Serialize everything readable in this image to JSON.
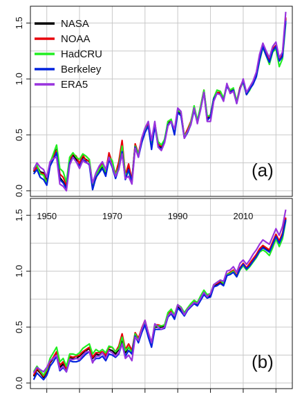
{
  "colors": {
    "NASA": "#000000",
    "NOAA": "#e8000b",
    "HadCRU": "#22ee22",
    "Berkeley": "#0022dd",
    "ERA5": "#9933dd"
  },
  "chart_data": [
    {
      "type": "line",
      "panel_label": "(a)",
      "legend_position": "top-left",
      "grid": true,
      "xlim": [
        1945,
        2025
      ],
      "ylim": [
        -0.05,
        1.65
      ],
      "yticks": [
        "0.0",
        "0.5",
        "1.0",
        "1.5"
      ],
      "x": [
        1946,
        1947,
        1948,
        1949,
        1950,
        1951,
        1952,
        1953,
        1954,
        1955,
        1956,
        1957,
        1958,
        1959,
        1960,
        1961,
        1962,
        1963,
        1964,
        1965,
        1966,
        1967,
        1968,
        1969,
        1970,
        1971,
        1972,
        1973,
        1974,
        1975,
        1976,
        1977,
        1978,
        1979,
        1980,
        1981,
        1982,
        1983,
        1984,
        1985,
        1986,
        1987,
        1988,
        1989,
        1990,
        1991,
        1992,
        1993,
        1994,
        1995,
        1996,
        1997,
        1998,
        1999,
        2000,
        2001,
        2002,
        2003,
        2004,
        2005,
        2006,
        2007,
        2008,
        2009,
        2010,
        2011,
        2012,
        2013,
        2014,
        2015,
        2016,
        2017,
        2018,
        2019,
        2020,
        2021,
        2022,
        2023
      ],
      "series": [
        {
          "name": "NASA",
          "values": [
            0.17,
            0.22,
            0.17,
            0.16,
            0.09,
            0.24,
            0.31,
            0.37,
            0.12,
            0.08,
            0.03,
            0.27,
            0.32,
            0.28,
            0.25,
            0.3,
            0.28,
            0.26,
            0.04,
            0.13,
            0.18,
            0.22,
            0.15,
            0.31,
            0.23,
            0.12,
            0.24,
            0.38,
            0.12,
            0.21,
            0.1,
            0.41,
            0.31,
            0.45,
            0.53,
            0.59,
            0.38,
            0.59,
            0.42,
            0.38,
            0.46,
            0.6,
            0.63,
            0.52,
            0.71,
            0.68,
            0.48,
            0.53,
            0.6,
            0.73,
            0.62,
            0.74,
            0.89,
            0.64,
            0.68,
            0.83,
            0.88,
            0.87,
            0.82,
            0.95,
            0.89,
            0.91,
            0.79,
            0.92,
            0.99,
            0.87,
            0.92,
            0.96,
            1.04,
            1.18,
            1.3,
            1.22,
            1.16,
            1.26,
            1.3,
            1.17,
            1.22,
            1.54
          ]
        },
        {
          "name": "NOAA",
          "values": [
            0.18,
            0.21,
            0.16,
            0.15,
            0.07,
            0.22,
            0.3,
            0.36,
            0.15,
            0.12,
            0.05,
            0.28,
            0.33,
            0.31,
            0.24,
            0.32,
            0.27,
            0.27,
            0.05,
            0.11,
            0.2,
            0.24,
            0.17,
            0.34,
            0.25,
            0.15,
            0.26,
            0.45,
            0.14,
            0.24,
            0.09,
            0.42,
            0.33,
            0.47,
            0.55,
            0.6,
            0.43,
            0.61,
            0.41,
            0.4,
            0.44,
            0.62,
            0.63,
            0.53,
            0.73,
            0.7,
            0.49,
            0.55,
            0.62,
            0.75,
            0.62,
            0.76,
            0.9,
            0.66,
            0.67,
            0.82,
            0.88,
            0.88,
            0.82,
            0.94,
            0.9,
            0.91,
            0.8,
            0.92,
            0.98,
            0.86,
            0.91,
            0.97,
            1.03,
            1.19,
            1.3,
            1.23,
            1.17,
            1.27,
            1.3,
            1.18,
            1.23,
            1.55
          ]
        },
        {
          "name": "HadCRU",
          "values": [
            0.2,
            0.23,
            0.15,
            0.14,
            0.06,
            0.25,
            0.33,
            0.41,
            0.2,
            0.17,
            0.08,
            0.3,
            0.34,
            0.3,
            0.28,
            0.33,
            0.31,
            0.28,
            0.06,
            0.14,
            0.19,
            0.23,
            0.17,
            0.3,
            0.27,
            0.14,
            0.21,
            0.4,
            0.14,
            0.17,
            0.08,
            0.4,
            0.33,
            0.44,
            0.54,
            0.58,
            0.42,
            0.6,
            0.44,
            0.41,
            0.46,
            0.62,
            0.64,
            0.53,
            0.72,
            0.7,
            0.49,
            0.53,
            0.61,
            0.76,
            0.63,
            0.76,
            0.9,
            0.67,
            0.67,
            0.83,
            0.9,
            0.89,
            0.83,
            0.94,
            0.9,
            0.92,
            0.8,
            0.91,
            0.97,
            0.86,
            0.9,
            0.96,
            1.02,
            1.16,
            1.28,
            1.21,
            1.13,
            1.24,
            1.27,
            1.11,
            1.18,
            1.5
          ]
        },
        {
          "name": "Berkeley",
          "values": [
            0.15,
            0.19,
            0.12,
            0.1,
            0.05,
            0.22,
            0.28,
            0.34,
            0.1,
            0.07,
            0.02,
            0.25,
            0.3,
            0.26,
            0.22,
            0.28,
            0.26,
            0.23,
            0.01,
            0.12,
            0.16,
            0.2,
            0.13,
            0.28,
            0.21,
            0.11,
            0.2,
            0.35,
            0.1,
            0.19,
            0.08,
            0.39,
            0.3,
            0.43,
            0.52,
            0.58,
            0.37,
            0.58,
            0.4,
            0.37,
            0.44,
            0.59,
            0.62,
            0.5,
            0.7,
            0.67,
            0.47,
            0.52,
            0.59,
            0.72,
            0.61,
            0.73,
            0.88,
            0.63,
            0.66,
            0.82,
            0.87,
            0.86,
            0.81,
            0.94,
            0.88,
            0.9,
            0.78,
            0.91,
            0.98,
            0.86,
            0.91,
            0.95,
            1.02,
            1.17,
            1.29,
            1.21,
            1.15,
            1.25,
            1.29,
            1.16,
            1.2,
            1.52
          ]
        },
        {
          "name": "ERA5",
          "values": [
            0.19,
            0.25,
            0.21,
            0.19,
            0.12,
            0.26,
            0.29,
            0.3,
            0.06,
            0.04,
            0.0,
            0.23,
            0.3,
            0.26,
            0.2,
            0.27,
            0.25,
            0.24,
            0.07,
            0.16,
            0.22,
            0.26,
            0.19,
            0.3,
            0.22,
            0.13,
            0.19,
            0.33,
            0.11,
            0.13,
            0.06,
            0.38,
            0.3,
            0.47,
            0.56,
            0.62,
            0.45,
            0.62,
            0.39,
            0.36,
            0.43,
            0.58,
            0.62,
            0.55,
            0.74,
            0.71,
            0.47,
            0.53,
            0.59,
            0.74,
            0.6,
            0.73,
            0.88,
            0.62,
            0.62,
            0.8,
            0.87,
            0.86,
            0.8,
            0.96,
            0.87,
            0.89,
            0.78,
            0.9,
            1.0,
            0.88,
            0.93,
            0.98,
            1.06,
            1.22,
            1.32,
            1.25,
            1.19,
            1.29,
            1.33,
            1.19,
            1.24,
            1.6
          ]
        }
      ]
    },
    {
      "type": "line",
      "panel_label": "(b)",
      "grid": true,
      "xlim": [
        1945,
        2025
      ],
      "ylim": [
        -0.05,
        1.65
      ],
      "yticks": [
        "0.0",
        "0.5",
        "1.0",
        "1.5"
      ],
      "xticks": [
        "1950",
        "1970",
        "1990",
        "2010"
      ],
      "x": [
        1946,
        1947,
        1948,
        1949,
        1950,
        1951,
        1952,
        1953,
        1954,
        1955,
        1956,
        1957,
        1958,
        1959,
        1960,
        1961,
        1962,
        1963,
        1964,
        1965,
        1966,
        1967,
        1968,
        1969,
        1970,
        1971,
        1972,
        1973,
        1974,
        1975,
        1976,
        1977,
        1978,
        1979,
        1980,
        1981,
        1982,
        1983,
        1984,
        1985,
        1986,
        1987,
        1988,
        1989,
        1990,
        1991,
        1992,
        1993,
        1994,
        1995,
        1996,
        1997,
        1998,
        1999,
        2000,
        2001,
        2002,
        2003,
        2004,
        2005,
        2006,
        2007,
        2008,
        2009,
        2010,
        2011,
        2012,
        2013,
        2014,
        2015,
        2016,
        2017,
        2018,
        2019,
        2020,
        2021,
        2022,
        2023
      ],
      "series": [
        {
          "name": "NASA",
          "values": [
            0.06,
            0.12,
            0.09,
            0.05,
            0.1,
            0.18,
            0.22,
            0.27,
            0.14,
            0.17,
            0.12,
            0.23,
            0.22,
            0.22,
            0.24,
            0.27,
            0.29,
            0.31,
            0.22,
            0.26,
            0.25,
            0.27,
            0.23,
            0.3,
            0.29,
            0.26,
            0.3,
            0.39,
            0.27,
            0.32,
            0.28,
            0.44,
            0.38,
            0.47,
            0.54,
            0.43,
            0.34,
            0.5,
            0.5,
            0.5,
            0.51,
            0.6,
            0.63,
            0.59,
            0.68,
            0.65,
            0.61,
            0.66,
            0.69,
            0.72,
            0.7,
            0.75,
            0.8,
            0.76,
            0.78,
            0.86,
            0.88,
            0.9,
            0.88,
            0.96,
            0.98,
            1.0,
            0.95,
            1.02,
            1.06,
            1.02,
            1.06,
            1.1,
            1.14,
            1.19,
            1.22,
            1.2,
            1.18,
            1.25,
            1.32,
            1.26,
            1.33,
            1.47
          ]
        },
        {
          "name": "NOAA",
          "values": [
            0.07,
            0.13,
            0.1,
            0.06,
            0.11,
            0.19,
            0.23,
            0.28,
            0.16,
            0.19,
            0.13,
            0.24,
            0.23,
            0.24,
            0.25,
            0.28,
            0.3,
            0.32,
            0.23,
            0.27,
            0.27,
            0.28,
            0.25,
            0.32,
            0.32,
            0.28,
            0.33,
            0.44,
            0.3,
            0.35,
            0.29,
            0.45,
            0.4,
            0.49,
            0.56,
            0.45,
            0.36,
            0.52,
            0.52,
            0.51,
            0.52,
            0.62,
            0.65,
            0.6,
            0.7,
            0.67,
            0.62,
            0.67,
            0.7,
            0.73,
            0.71,
            0.77,
            0.81,
            0.78,
            0.79,
            0.88,
            0.89,
            0.91,
            0.89,
            0.97,
            0.99,
            1.01,
            0.96,
            1.03,
            1.07,
            1.03,
            1.07,
            1.11,
            1.15,
            1.2,
            1.23,
            1.21,
            1.19,
            1.26,
            1.33,
            1.27,
            1.34,
            1.48
          ]
        },
        {
          "name": "HadCRU",
          "values": [
            0.1,
            0.15,
            0.11,
            0.07,
            0.12,
            0.22,
            0.27,
            0.32,
            0.19,
            0.22,
            0.15,
            0.26,
            0.26,
            0.25,
            0.27,
            0.31,
            0.33,
            0.35,
            0.26,
            0.3,
            0.28,
            0.3,
            0.27,
            0.33,
            0.32,
            0.28,
            0.31,
            0.41,
            0.29,
            0.32,
            0.27,
            0.44,
            0.38,
            0.48,
            0.55,
            0.44,
            0.35,
            0.51,
            0.51,
            0.51,
            0.52,
            0.63,
            0.66,
            0.61,
            0.7,
            0.68,
            0.63,
            0.67,
            0.71,
            0.74,
            0.72,
            0.78,
            0.83,
            0.79,
            0.8,
            0.88,
            0.9,
            0.92,
            0.89,
            0.97,
            0.98,
            1.0,
            0.95,
            1.01,
            1.05,
            1.01,
            1.04,
            1.08,
            1.12,
            1.17,
            1.19,
            1.17,
            1.14,
            1.21,
            1.29,
            1.22,
            1.29,
            1.45
          ]
        },
        {
          "name": "Berkeley",
          "values": [
            0.03,
            0.09,
            0.06,
            0.03,
            0.07,
            0.15,
            0.19,
            0.24,
            0.11,
            0.14,
            0.1,
            0.2,
            0.19,
            0.19,
            0.2,
            0.23,
            0.26,
            0.28,
            0.19,
            0.22,
            0.22,
            0.24,
            0.2,
            0.26,
            0.25,
            0.23,
            0.26,
            0.35,
            0.24,
            0.29,
            0.26,
            0.42,
            0.36,
            0.45,
            0.52,
            0.41,
            0.32,
            0.48,
            0.48,
            0.48,
            0.49,
            0.59,
            0.62,
            0.57,
            0.67,
            0.64,
            0.6,
            0.65,
            0.68,
            0.71,
            0.69,
            0.74,
            0.79,
            0.76,
            0.77,
            0.86,
            0.87,
            0.89,
            0.87,
            0.96,
            0.97,
            0.99,
            0.95,
            1.02,
            1.06,
            1.02,
            1.05,
            1.09,
            1.13,
            1.18,
            1.21,
            1.19,
            1.17,
            1.24,
            1.31,
            1.25,
            1.32,
            1.46
          ]
        },
        {
          "name": "ERA5",
          "values": [
            0.09,
            0.14,
            0.12,
            0.1,
            0.14,
            0.2,
            0.22,
            0.25,
            0.12,
            0.15,
            0.1,
            0.21,
            0.21,
            0.22,
            0.21,
            0.25,
            0.28,
            0.28,
            0.18,
            0.24,
            0.24,
            0.27,
            0.22,
            0.29,
            0.27,
            0.24,
            0.27,
            0.35,
            0.22,
            0.25,
            0.2,
            0.41,
            0.38,
            0.48,
            0.56,
            0.45,
            0.36,
            0.53,
            0.5,
            0.48,
            0.5,
            0.6,
            0.63,
            0.6,
            0.7,
            0.67,
            0.61,
            0.66,
            0.69,
            0.72,
            0.71,
            0.76,
            0.81,
            0.77,
            0.8,
            0.88,
            0.9,
            0.92,
            0.91,
            1.0,
            1.01,
            1.04,
            0.99,
            1.07,
            1.1,
            1.06,
            1.1,
            1.15,
            1.19,
            1.24,
            1.28,
            1.26,
            1.24,
            1.31,
            1.38,
            1.32,
            1.4,
            1.55
          ]
        }
      ]
    }
  ]
}
